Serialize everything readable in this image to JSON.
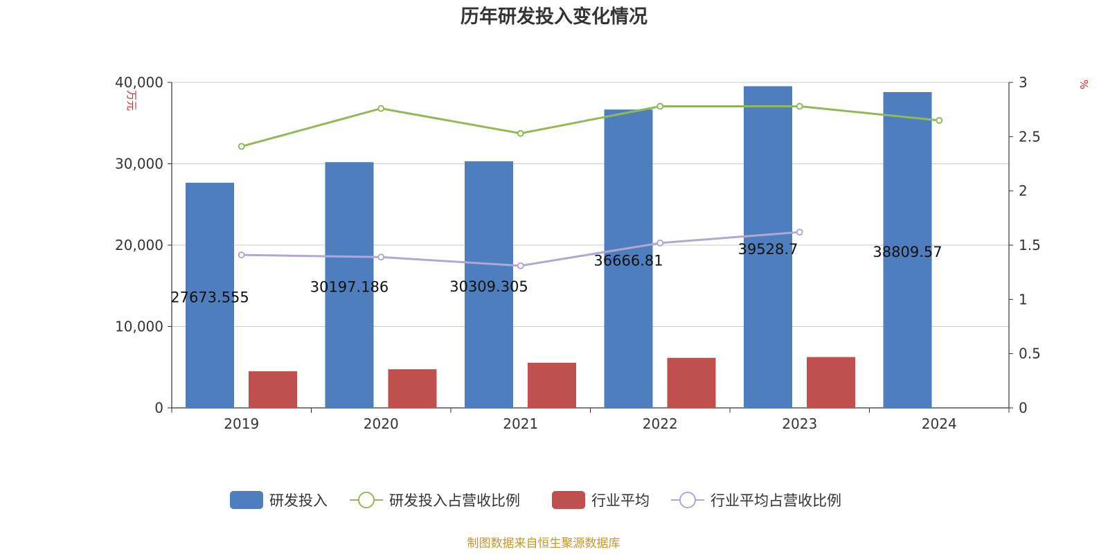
{
  "chart_data": {
    "type": "bar",
    "title": "历年研发投入变化情况",
    "categories": [
      "2019",
      "2020",
      "2021",
      "2022",
      "2023",
      "2024"
    ],
    "y_left": {
      "unit": "万元",
      "ylim": [
        0,
        40000
      ],
      "ticks": [
        "0",
        "10,000",
        "20,000",
        "30,000",
        "40,000"
      ]
    },
    "y_right": {
      "unit": "%",
      "ylim": [
        0,
        3
      ],
      "ticks": [
        "0",
        "0.5",
        "1",
        "1.5",
        "2",
        "2.5",
        "3"
      ]
    },
    "series": [
      {
        "name": "研发投入",
        "kind": "bar",
        "axis": "left",
        "color": "#4e7ebd",
        "values": [
          27673.555,
          30197.186,
          30309.305,
          36666.81,
          39528.7,
          38809.57
        ],
        "labels": [
          "27673.555",
          "30197.186",
          "30309.305",
          "36666.81",
          "39528.7",
          "38809.57"
        ]
      },
      {
        "name": "研发投入占营收比例",
        "kind": "line",
        "axis": "right",
        "color": "#92b957",
        "values": [
          2.41,
          2.76,
          2.53,
          2.78,
          2.78,
          2.65
        ]
      },
      {
        "name": "行业平均",
        "kind": "bar",
        "axis": "left",
        "color": "#c0504d",
        "values": [
          4500,
          4750,
          5550,
          6150,
          6250,
          null
        ]
      },
      {
        "name": "行业平均占营收比例",
        "kind": "line",
        "axis": "right",
        "color": "#b3a6d4",
        "values": [
          1.41,
          1.39,
          1.31,
          1.52,
          1.62,
          null
        ]
      }
    ],
    "grid": true,
    "legend_position": "bottom"
  },
  "source": "制图数据来自恒生聚源数据库"
}
